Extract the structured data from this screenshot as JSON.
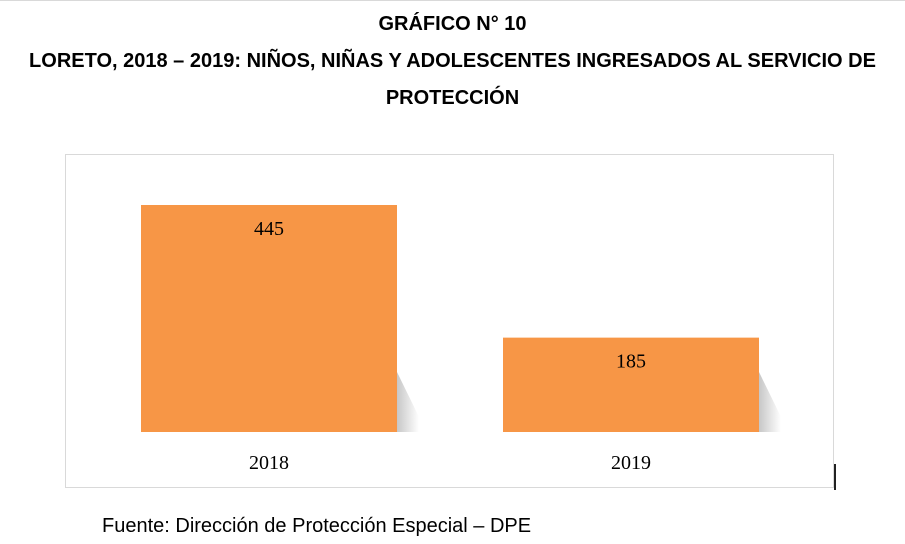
{
  "title": {
    "line1": "GRÁFICO N° 10",
    "line2": "LORETO, 2018 – 2019: NIÑOS, NIÑAS Y ADOLESCENTES INGRESADOS AL SERVICIO DE",
    "line3": "PROTECCIÓN"
  },
  "chart_data": {
    "type": "bar",
    "title": "LORETO, 2018 – 2019: NIÑOS, NIÑAS Y ADOLESCENTES INGRESADOS AL SERVICIO DE PROTECCIÓN",
    "categories": [
      "2018",
      "2019"
    ],
    "values": [
      445,
      185
    ],
    "xlabel": "",
    "ylabel": "",
    "ylim": [
      0,
      445
    ],
    "grid": false,
    "legend": "none",
    "bar_color": "#F79646"
  },
  "source": "Fuente: Dirección de Protección Especial – DPE",
  "colors": {
    "bar": "#F79646",
    "frame": "#d9d9d9"
  }
}
